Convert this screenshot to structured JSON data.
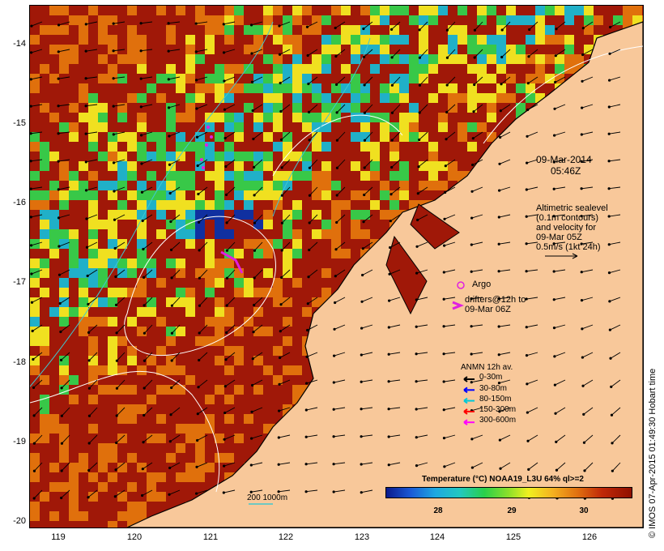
{
  "map": {
    "date_label": "09-Mar-2014",
    "time_label": "05:46Z",
    "altimetry_lines": [
      "Altimetric sealevel",
      "(0.1m contours)",
      "and velocity for",
      "09-Mar 05Z",
      "0.5m/s (1kt 24h)"
    ],
    "argo_label": "Argo",
    "drifters_lines": [
      "drifters@12h to",
      "09-Mar 06Z"
    ],
    "anmn_title": "ANMN 12h av.",
    "anmn_items": [
      {
        "label": "0-30m",
        "color": "#000000"
      },
      {
        "label": "30-80m",
        "color": "#0000ff"
      },
      {
        "label": "80-150m",
        "color": "#00c8d8"
      },
      {
        "label": "150-300m",
        "color": "#ff0000"
      },
      {
        "label": "300-600m",
        "color": "#ff00ff"
      }
    ],
    "isobath_label": "200  1000m",
    "stamp": "© IMOS 07-Apr-2015 01:49:30 Hobart time",
    "colorbar_title": "Temperature (°C) NOAA19_L3U 64% ql>=2",
    "colorbar_ticks": [
      "28",
      "29",
      "30"
    ],
    "lat_ticks": [
      "-14",
      "-15",
      "-16",
      "-17",
      "-18",
      "-19",
      "-20"
    ],
    "lon_ticks": [
      "119",
      "120",
      "121",
      "122",
      "123",
      "124",
      "125",
      "126"
    ],
    "colors": {
      "land": "#f8c89a",
      "warm": "#a01808",
      "orange": "#e0700c",
      "yellow": "#f0e020",
      "green": "#38c848",
      "cyan": "#20b0c8",
      "blue": "#1030a0",
      "argo": "#e020e0"
    }
  }
}
